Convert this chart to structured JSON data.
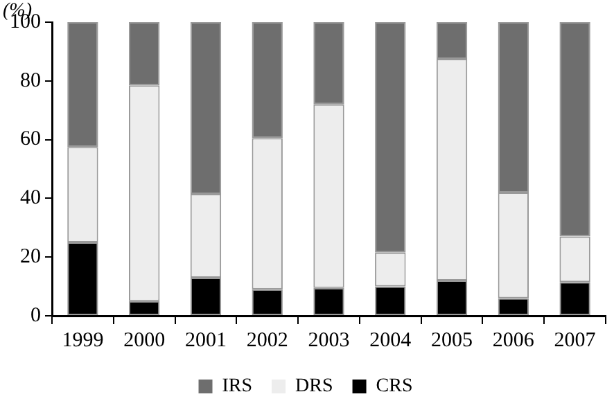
{
  "chart_data": {
    "type": "bar",
    "stacked": true,
    "ylabel": "(%)",
    "categories": [
      "1999",
      "2000",
      "2001",
      "2002",
      "2003",
      "2004",
      "2005",
      "2006",
      "2007"
    ],
    "series": [
      {
        "name": "CRS",
        "color": "#000000",
        "values": [
          25,
          5,
          13,
          9,
          9.5,
          10,
          12,
          6,
          11.5
        ]
      },
      {
        "name": "DRS",
        "color": "#ededed",
        "values": [
          32.5,
          73.5,
          28.5,
          51.5,
          62.5,
          11.5,
          75.5,
          36,
          15.5
        ]
      },
      {
        "name": "IRS",
        "color": "#6e6e6e",
        "values": [
          42.5,
          21.5,
          58.5,
          39.5,
          28,
          78.5,
          12.5,
          58,
          73
        ]
      }
    ],
    "ylim": [
      0,
      100
    ],
    "yticks": [
      0,
      20,
      40,
      60,
      80,
      100
    ],
    "grid": false,
    "legend": "bottom"
  }
}
